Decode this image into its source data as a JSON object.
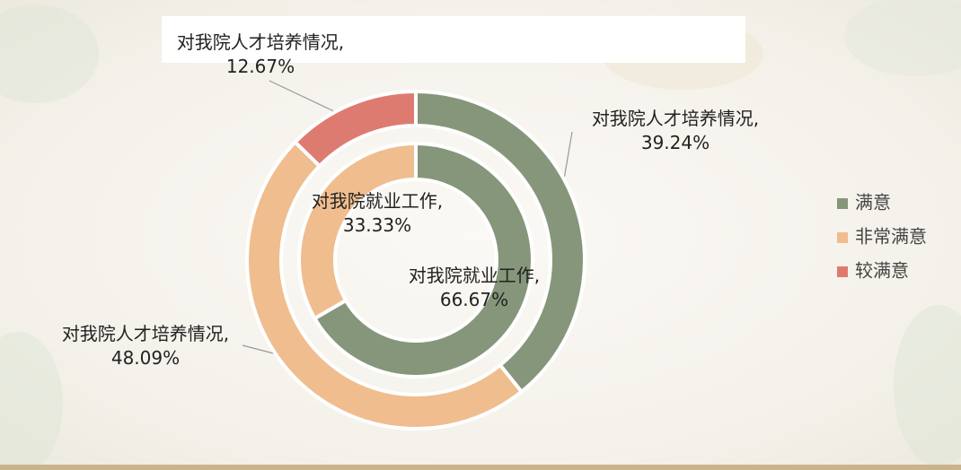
{
  "chart_data": {
    "type": "donut",
    "categories": [
      "满意",
      "非常满意",
      "较满意"
    ],
    "colors": [
      "#86967a",
      "#f0bd8f",
      "#de7b70"
    ],
    "rings": [
      {
        "values": [
          39.24,
          48.09,
          12.67
        ],
        "value_labels": [
          "对我院人才培养情况, 39.24%",
          "对我院人才培养情况, 48.09%",
          "对我院人才培养情况, 12.67%"
        ]
      },
      {
        "values": [
          66.67,
          33.33,
          null
        ],
        "value_labels": [
          "对我院就业工作, 66.67%",
          "对我院就业工作, 33.33%",
          null
        ]
      }
    ],
    "legend": "right"
  }
}
